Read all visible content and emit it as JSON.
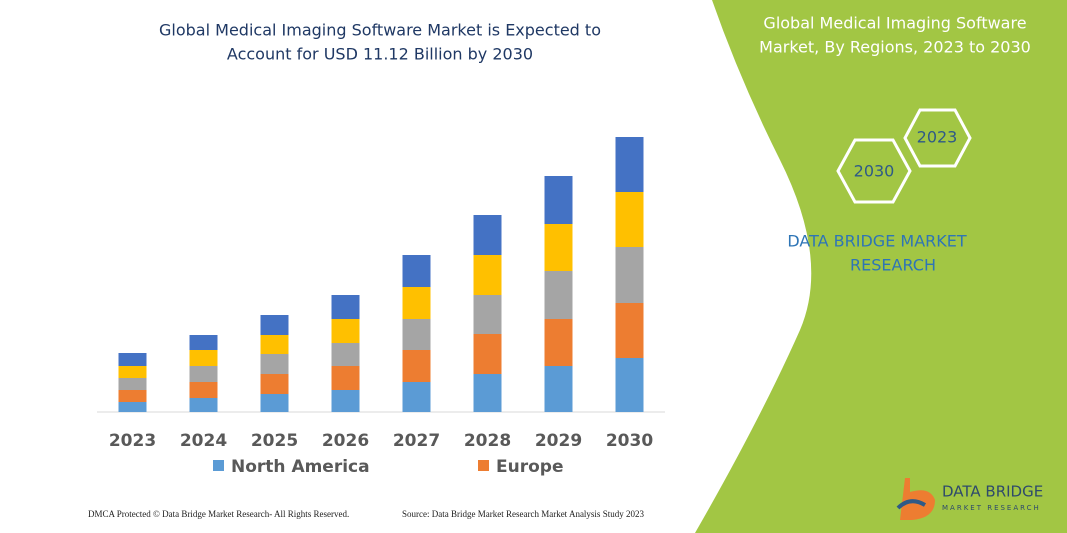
{
  "chart_data": {
    "type": "stacked-bar",
    "title": [
      "Global Medical Imaging Software Market is Expected to",
      "Account for USD 11.12 Billion by 2030"
    ],
    "categories": [
      "2023",
      "2024",
      "2025",
      "2026",
      "2027",
      "2028",
      "2029",
      "2030"
    ],
    "series": [
      {
        "name": "North America",
        "color": "#5b9bd5",
        "values": [
          10,
          14,
          18,
          22,
          30,
          38,
          46,
          54
        ]
      },
      {
        "name": "Europe",
        "color": "#ed7d31",
        "values": [
          12,
          16,
          20,
          24,
          32,
          40,
          47,
          55
        ]
      },
      {
        "color": "#a5a5a5",
        "values": [
          12,
          16,
          20,
          23,
          31,
          39,
          48,
          56
        ]
      },
      {
        "color": "#ffc000",
        "values": [
          12,
          16,
          19,
          24,
          32,
          40,
          47,
          55
        ]
      },
      {
        "color": "#4472c4",
        "values": [
          13,
          15,
          20,
          24,
          32,
          40,
          48,
          55
        ]
      }
    ]
  },
  "panel": {
    "title": [
      "Global Medical Imaging Software",
      "Market, By Regions, 2023 to 2030"
    ],
    "hex_start": "2023",
    "hex_end": "2030",
    "brand": [
      "DATA BRIDGE MARKET",
      "RESEARCH"
    ]
  },
  "logo": {
    "name": "DATA BRIDGE",
    "tagline": "MARKET RESEARCH"
  },
  "footer": {
    "left": "DMCA Protected © Data Bridge Market Research- All Rights Reserved.",
    "right": "Source: Data Bridge Market Research Market Analysis Study 2023"
  }
}
